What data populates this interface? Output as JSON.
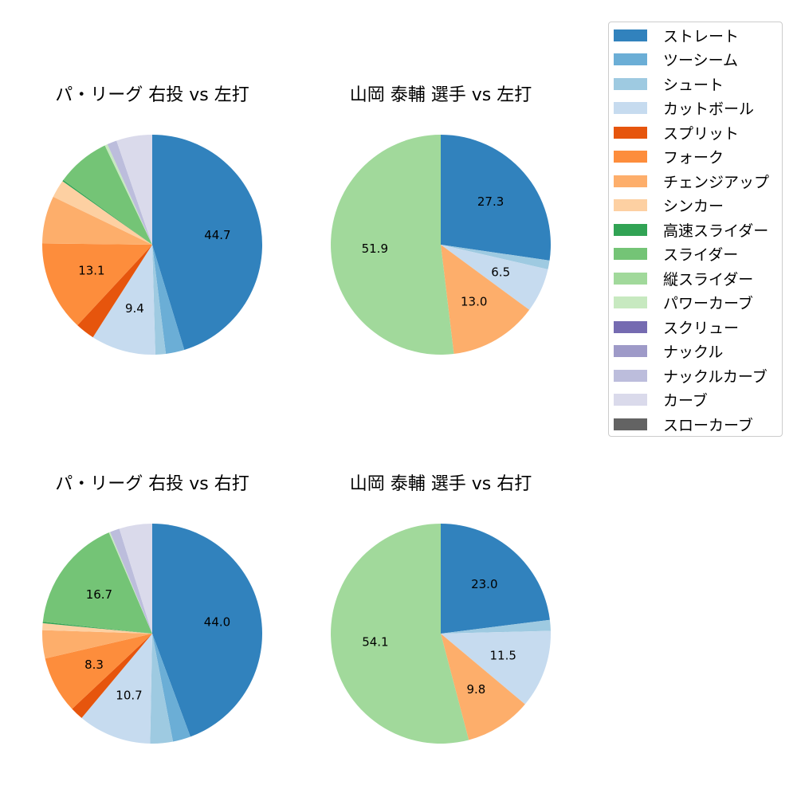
{
  "colors": {
    "ストレート": "#3182bd",
    "ツーシーム": "#6baed6",
    "シュート": "#9ecae1",
    "カットボール": "#c6dbef",
    "スプリット": "#e6550d",
    "フォーク": "#fd8d3c",
    "チェンジアップ": "#fdae6b",
    "シンカー": "#fdd0a2",
    "高速スライダー": "#31a354",
    "スライダー": "#74c476",
    "縦スライダー": "#a1d99b",
    "パワーカーブ": "#c7e9c0",
    "スクリュー": "#756bb1",
    "ナックル": "#9e9ac8",
    "ナックルカーブ": "#bcbddc",
    "カーブ": "#dadaeb",
    "スローカーブ": "#636363"
  },
  "legend": {
    "items": [
      "ストレート",
      "ツーシーム",
      "シュート",
      "カットボール",
      "スプリット",
      "フォーク",
      "チェンジアップ",
      "シンカー",
      "高速スライダー",
      "スライダー",
      "縦スライダー",
      "パワーカーブ",
      "スクリュー",
      "ナックル",
      "ナックルカーブ",
      "カーブ",
      "スローカーブ"
    ]
  },
  "chart_data": [
    {
      "type": "pie",
      "title": "パ・リーグ 右投 vs 左打",
      "slices": [
        {
          "label": "ストレート",
          "value": 44.7,
          "show_label": true
        },
        {
          "label": "ツーシーム",
          "value": 2.7
        },
        {
          "label": "シュート",
          "value": 1.5
        },
        {
          "label": "カットボール",
          "value": 9.4,
          "show_label": true
        },
        {
          "label": "スプリット",
          "value": 2.8
        },
        {
          "label": "フォーク",
          "value": 13.1,
          "show_label": true
        },
        {
          "label": "チェンジアップ",
          "value": 6.9
        },
        {
          "label": "シンカー",
          "value": 2.6
        },
        {
          "label": "高速スライダー",
          "value": 0.2
        },
        {
          "label": "スライダー",
          "value": 7.8
        },
        {
          "label": "パワーカーブ",
          "value": 0.4
        },
        {
          "label": "ナックルカーブ",
          "value": 1.4
        },
        {
          "label": "カーブ",
          "value": 5.2
        }
      ]
    },
    {
      "type": "pie",
      "title": "山岡 泰輔 選手 vs 左打",
      "slices": [
        {
          "label": "ストレート",
          "value": 27.3,
          "show_label": true
        },
        {
          "label": "シュート",
          "value": 1.3
        },
        {
          "label": "カットボール",
          "value": 6.5,
          "show_label": true
        },
        {
          "label": "チェンジアップ",
          "value": 13.0,
          "show_label": true
        },
        {
          "label": "縦スライダー",
          "value": 51.9,
          "show_label": true
        }
      ]
    },
    {
      "type": "pie",
      "title": "パ・リーグ 右投 vs 右打",
      "slices": [
        {
          "label": "ストレート",
          "value": 44.0,
          "show_label": true
        },
        {
          "label": "ツーシーム",
          "value": 2.6
        },
        {
          "label": "シュート",
          "value": 3.3
        },
        {
          "label": "カットボール",
          "value": 10.7,
          "show_label": true
        },
        {
          "label": "スプリット",
          "value": 1.9
        },
        {
          "label": "フォーク",
          "value": 8.3,
          "show_label": true
        },
        {
          "label": "チェンジアップ",
          "value": 4.1
        },
        {
          "label": "シンカー",
          "value": 1.0
        },
        {
          "label": "高速スライダー",
          "value": 0.2
        },
        {
          "label": "スライダー",
          "value": 16.7,
          "show_label": true
        },
        {
          "label": "パワーカーブ",
          "value": 0.2
        },
        {
          "label": "ナックルカーブ",
          "value": 1.4
        },
        {
          "label": "カーブ",
          "value": 4.8
        }
      ]
    },
    {
      "type": "pie",
      "title": "山岡 泰輔 選手 vs 右打",
      "slices": [
        {
          "label": "ストレート",
          "value": 23.0,
          "show_label": true
        },
        {
          "label": "シュート",
          "value": 1.6
        },
        {
          "label": "カットボール",
          "value": 11.5,
          "show_label": true
        },
        {
          "label": "チェンジアップ",
          "value": 9.8,
          "show_label": true
        },
        {
          "label": "縦スライダー",
          "value": 54.1,
          "show_label": true
        }
      ]
    }
  ]
}
